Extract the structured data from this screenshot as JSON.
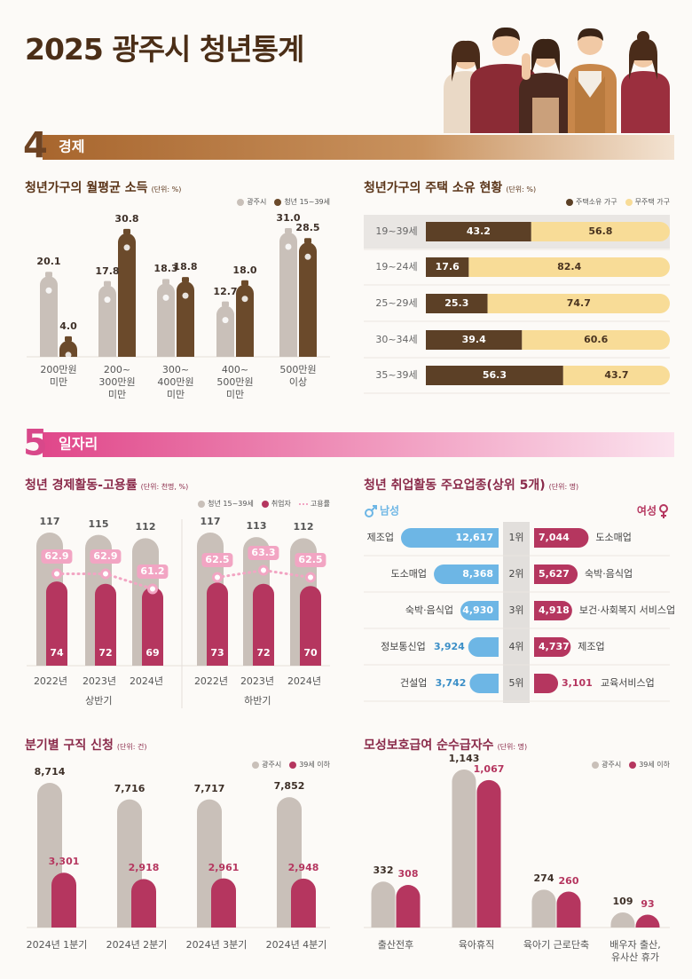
{
  "title": "2025 광주시 청년통계",
  "sections": [
    {
      "number": "4",
      "name": "경제"
    },
    {
      "number": "5",
      "name": "일자리"
    }
  ],
  "chart_data": [
    {
      "type": "bar",
      "title": "청년가구의 월평균 소득",
      "unit": "(단위: %)",
      "categories": [
        "200만원\n미만",
        "200~\n300만원\n미만",
        "300~\n400만원\n미만",
        "400~\n500만원\n미만",
        "500만원\n이상"
      ],
      "series": [
        {
          "name": "광주시",
          "color": "#c9c0b9",
          "values": [
            20.1,
            17.8,
            18.3,
            12.7,
            31.0
          ],
          "value_labels": [
            "20.1",
            "17.8",
            "18.3",
            "12.7",
            "31.0"
          ]
        },
        {
          "name": "청년 15~39세",
          "color": "#6b4a2b",
          "values": [
            4.0,
            30.8,
            18.8,
            18.0,
            28.5
          ],
          "value_labels": [
            "4.0",
            "30.8",
            "18.8",
            "18.0",
            "28.5"
          ]
        }
      ]
    },
    {
      "type": "bar",
      "orientation": "horizontal",
      "stacked": true,
      "title": "청년가구의 주택 소유 현황",
      "unit": "(단위: %)",
      "categories": [
        "19~39세",
        "19~24세",
        "25~29세",
        "30~34세",
        "35~39세"
      ],
      "series": [
        {
          "name": "주택소유 가구",
          "color": "#5c4026",
          "values": [
            43.2,
            17.6,
            25.3,
            39.4,
            56.3
          ]
        },
        {
          "name": "무주택 가구",
          "color": "#f8dc97",
          "values": [
            56.8,
            82.4,
            74.7,
            60.6,
            43.7
          ]
        }
      ]
    },
    {
      "type": "bar-line",
      "title": "청년 경제활동-고용률",
      "unit": "(단위: 천명, %)",
      "categories": [
        "2022년",
        "2023년",
        "2024년",
        "2022년",
        "2023년",
        "2024년"
      ],
      "category_groups": [
        "상반기",
        "하반기"
      ],
      "series": [
        {
          "name": "청년 15~39세",
          "color": "#c9c0b9",
          "values": [
            117,
            115,
            112,
            117,
            113,
            112
          ]
        },
        {
          "name": "취업자",
          "color": "#b5365f",
          "values": [
            74,
            72,
            69,
            73,
            72,
            70
          ]
        },
        {
          "name": "고용률",
          "type": "line",
          "axis": "y2",
          "color": "#f2a5c3",
          "values": [
            62.9,
            62.9,
            61.2,
            62.5,
            63.3,
            62.5
          ]
        }
      ]
    },
    {
      "type": "diverging-bar",
      "title": "청년 취업활동 주요업종(상위 5개)",
      "unit": "(단위: 명)",
      "ranks": [
        "1위",
        "2위",
        "3위",
        "4위",
        "5위"
      ],
      "series": [
        {
          "name": "남성",
          "color": "#6db6e5",
          "categories": [
            "제조업",
            "도소매업",
            "숙박·음식업",
            "정보통신업",
            "건설업"
          ],
          "values": [
            12617,
            8368,
            4930,
            3924,
            3742
          ],
          "value_labels": [
            "12,617",
            "8,368",
            "4,930",
            "3,924",
            "3,742"
          ]
        },
        {
          "name": "여성",
          "color": "#b5365f",
          "categories": [
            "도소매업",
            "숙박·음식업",
            "보건·사회복지 서비스업",
            "제조업",
            "교육서비스업"
          ],
          "values": [
            7044,
            5627,
            4918,
            4737,
            3101
          ],
          "value_labels": [
            "7,044",
            "5,627",
            "4,918",
            "4,737",
            "3,101"
          ]
        }
      ]
    },
    {
      "type": "bar",
      "title": "분기별 구직 신청",
      "unit": "(단위: 건)",
      "categories": [
        "2024년 1분기",
        "2024년 2분기",
        "2024년 3분기",
        "2024년 4분기"
      ],
      "series": [
        {
          "name": "광주시",
          "color": "#c9c0b9",
          "values": [
            8714,
            7716,
            7717,
            7852
          ],
          "value_labels": [
            "8,714",
            "7,716",
            "7,717",
            "7,852"
          ]
        },
        {
          "name": "39세 이하",
          "color": "#b5365f",
          "values": [
            3301,
            2918,
            2961,
            2948
          ],
          "value_labels": [
            "3,301",
            "2,918",
            "2,961",
            "2,948"
          ]
        }
      ]
    },
    {
      "type": "bar",
      "title": "모성보호급여 순수급자수",
      "unit": "(단위: 명)",
      "categories": [
        "출산전후",
        "육아휴직",
        "육아기 근로단축",
        "배우자 출산,\n유사산 휴가"
      ],
      "series": [
        {
          "name": "광주시",
          "color": "#c9c0b9",
          "values": [
            332,
            1143,
            274,
            109
          ],
          "value_labels": [
            "332",
            "1,143",
            "274",
            "109"
          ]
        },
        {
          "name": "39세 이하",
          "color": "#b5365f",
          "values": [
            308,
            1067,
            260,
            93
          ],
          "value_labels": [
            "308",
            "1,067",
            "260",
            "93"
          ]
        }
      ]
    }
  ]
}
